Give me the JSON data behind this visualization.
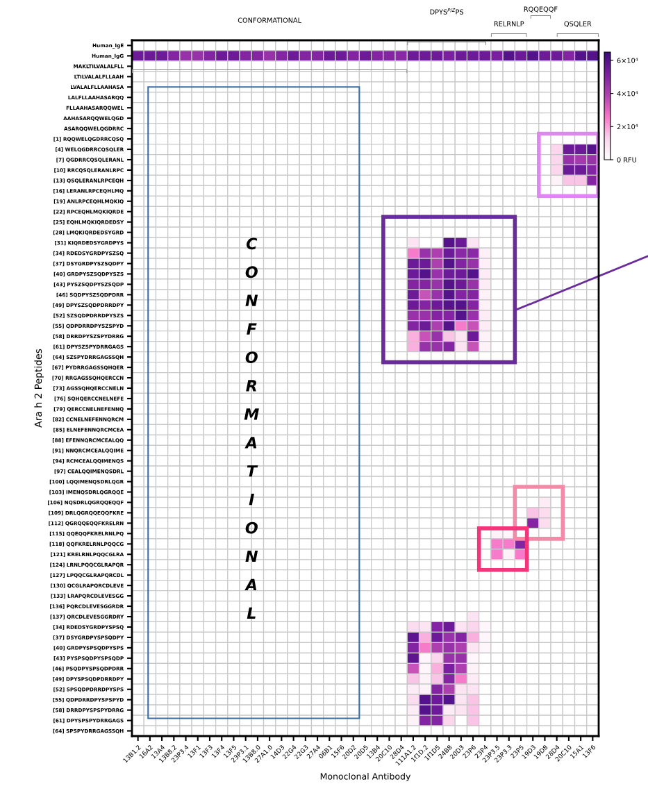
{
  "chart_data": {
    "type": "heatmap",
    "xlabel": "Monoclonal Antibody",
    "ylabel": "Ara h 2 Peptides",
    "categories": [
      "13B1.2",
      "16A2",
      "13A4",
      "13B8.2",
      "23P3.4",
      "13F1",
      "13F3",
      "13F4",
      "13F5",
      "23P3.1",
      "13B8.0",
      "27A1.0",
      "14D3",
      "22G4",
      "22G3",
      "27A4",
      "06B1",
      "15F6",
      "20D2",
      "20D5",
      "13B4",
      "20C10",
      "28D4",
      "111A1.2",
      "1f1D.2",
      "1f1D5",
      "24B8",
      "20D3",
      "23P6",
      "23P4",
      "23P3.5",
      "23P3.3",
      "23P5",
      "19D3",
      "19D8",
      "28D4",
      "20C10",
      "15A1",
      "13F6"
    ],
    "y_categories": [
      "Human_IgE",
      "Human_IgG",
      "MAKLTILVALALFLL",
      "LTILVALALFLLAAH",
      "LVALALFLLAAHASA",
      "LALFLLAAHASARQQ",
      "FLLAAHASARQQWEL",
      "AAHASARQQWELQGD",
      "ASARQQWELQGDRRC",
      "[1] RQQWELQGDRRCQSQ",
      "[4] WELQGDRRCQSQLER",
      "[7] QGDRRCQSQLERANL",
      "[10] RRCQSQLERANLRPC",
      "[13] QSQLERANLRPCEQH",
      "[16] LERANLRPCEQHLMQ",
      "[19] ANLRPCEQHLMQKIQ",
      "[22] RPCEQHLMQKIQRDE",
      "[25] EQHLMQKIQRDEDSY",
      "[28] LMQKIQRDEDSYGRD",
      "[31] KIQRDEDSYGRDPYS",
      "[34] RDEDSYGRDPYSZSQ",
      "[37] DSYGRDPYSZSQDPY",
      "[40] GRDPYSZSQDPYSZS",
      "[43] PYSZSQDPYSZSQDP",
      "[46] SQDPYSZSQDPDRR",
      "[49] DPYSZSQDPDRRDPY",
      "[52] SZSQDPDRRDPYSZS",
      "[55] QDPDRRDPYSZSPYD",
      "[58] DRRDPYSZSPYDRRG",
      "[61] DPYSZSPYDRRGAGS",
      "[64] SZSPYDRRGAGSSQH",
      "[67] PYDRRGAGSSQHQER",
      "[70] RRGAGSSQHQERCCN",
      "[73] AGSSQHQERCCNELN",
      "[76] SQHQERCCNELNEFE",
      "[79] QERCCNELNEFENNQ",
      "[82] CCNELNEFENNQRCM",
      "[85] ELNEFENNQRCMCEA",
      "[88] EFENNQRCMCEALQQ",
      "[91] NNQRCMCEALQQIME",
      "[94] RCMCEALQQIMENQS",
      "[97] CEALQQIMENQSDRL",
      "[100] LQQIMENQSDRLQGR",
      "[103] IMENQSDRLQGRQQE",
      "[106] NQSDRLQGRQQEQQF",
      "[109] DRLQGRQQEQQFKRE",
      "[112] QGRQQEQQFKRELRN",
      "[115] QQEQQFKRELRNLPQ",
      "[118] QQFKRELRNLPQQCG",
      "[121] KRELRNLPQQCGLRA",
      "[124] LRNLPQQCGLRAPQR",
      "[127] LPQQCGLRAPQRCDL",
      "[130] QCGLRAPQRCDLEVE",
      "[133] LRAPQRCDLEVESGG",
      "[136] PQRCDLEVESGGRDR",
      "[137] QRCDLEVESGGRDRY",
      "[34] RDEDSYGRDPYSPSQ",
      "[37] DSYGRDPYSPSQDPY",
      "[40] GRDPYSPSQDPYSPS",
      "[43] PYSPSQDPYSPSQDP",
      "[46] PSQDPYSPSQDPDRR",
      "[49] DPYSPSQDPDRRDPY",
      "[52] SPSQDPDRRDPYSPS",
      "[55] QDPDRRDPYSPSPYD",
      "[58] DRRDPYSPSPYDRRG",
      "[61] DPYSPSPYDRRGAGS",
      "[64] SPSPYDRRGAGSSQH"
    ],
    "cells": [
      [
        0,
        0,
        0,
        0,
        0,
        0,
        0,
        0,
        0,
        0,
        0,
        0,
        0,
        0,
        0,
        0,
        0,
        0,
        0,
        0,
        0,
        0,
        0,
        0,
        0,
        0,
        0,
        0,
        0,
        0,
        0,
        0,
        0,
        0,
        0,
        0,
        0,
        0,
        0
      ],
      [
        55000,
        55000,
        55000,
        50000,
        45000,
        45000,
        50000,
        55000,
        55000,
        50000,
        50000,
        45000,
        50000,
        55000,
        50000,
        50000,
        55000,
        55000,
        50000,
        55000,
        50000,
        50000,
        48000,
        55000,
        55000,
        55000,
        52000,
        55000,
        55000,
        55000,
        52000,
        60000,
        55000,
        60000,
        55000,
        55000,
        50000,
        60000,
        60000
      ],
      [
        0,
        0,
        0,
        0,
        0,
        0,
        0,
        0,
        0,
        0,
        0,
        0,
        0,
        0,
        0,
        0,
        0,
        0,
        0,
        0,
        0,
        0,
        0,
        0,
        0,
        0,
        0,
        0,
        0,
        0,
        0,
        0,
        0,
        0,
        0,
        0,
        0,
        0,
        0
      ],
      [
        0,
        0,
        0,
        0,
        0,
        0,
        0,
        0,
        0,
        0,
        0,
        0,
        0,
        0,
        0,
        0,
        0,
        0,
        0,
        0,
        0,
        0,
        0,
        0,
        0,
        0,
        0,
        0,
        0,
        0,
        0,
        0,
        0,
        0,
        0,
        0,
        0,
        0,
        0
      ],
      [
        0,
        0,
        0,
        0,
        0,
        0,
        0,
        0,
        0,
        0,
        0,
        0,
        0,
        0,
        0,
        0,
        0,
        0,
        0,
        0,
        0,
        0,
        0,
        0,
        0,
        0,
        0,
        0,
        0,
        0,
        0,
        0,
        0,
        0,
        0,
        0,
        0,
        0,
        0
      ],
      [
        0,
        0,
        0,
        0,
        0,
        0,
        0,
        0,
        0,
        0,
        0,
        0,
        0,
        0,
        0,
        0,
        0,
        0,
        0,
        0,
        0,
        0,
        0,
        0,
        0,
        0,
        0,
        0,
        0,
        0,
        0,
        0,
        0,
        0,
        0,
        0,
        0,
        0,
        0
      ],
      [
        0,
        0,
        0,
        0,
        0,
        0,
        0,
        0,
        0,
        0,
        0,
        0,
        0,
        0,
        0,
        0,
        0,
        0,
        0,
        0,
        0,
        0,
        0,
        0,
        0,
        0,
        0,
        0,
        0,
        0,
        0,
        0,
        0,
        0,
        0,
        0,
        0,
        0,
        0
      ],
      [
        0,
        0,
        0,
        0,
        0,
        0,
        0,
        0,
        0,
        0,
        0,
        0,
        0,
        0,
        0,
        0,
        0,
        0,
        0,
        0,
        0,
        0,
        0,
        0,
        0,
        0,
        0,
        0,
        0,
        0,
        0,
        0,
        0,
        0,
        0,
        0,
        0,
        0,
        0
      ],
      [
        0,
        0,
        0,
        0,
        0,
        0,
        0,
        0,
        0,
        0,
        0,
        0,
        0,
        0,
        0,
        0,
        0,
        0,
        0,
        0,
        0,
        0,
        0,
        0,
        0,
        0,
        0,
        0,
        0,
        0,
        0,
        0,
        0,
        0,
        0,
        0,
        0,
        0,
        0
      ],
      [
        0,
        0,
        0,
        0,
        0,
        0,
        0,
        0,
        0,
        0,
        0,
        0,
        0,
        0,
        0,
        0,
        0,
        0,
        0,
        0,
        0,
        0,
        0,
        0,
        0,
        0,
        0,
        0,
        0,
        0,
        0,
        0,
        0,
        0,
        0,
        0,
        0,
        0,
        0
      ],
      [
        0,
        0,
        0,
        0,
        0,
        0,
        0,
        0,
        0,
        0,
        0,
        0,
        0,
        0,
        0,
        0,
        0,
        0,
        0,
        0,
        0,
        0,
        0,
        0,
        0,
        0,
        0,
        0,
        0,
        0,
        0,
        0,
        0,
        0,
        0,
        12000,
        55000,
        55000,
        60000
      ],
      [
        0,
        0,
        0,
        0,
        0,
        0,
        0,
        0,
        0,
        0,
        0,
        0,
        0,
        0,
        0,
        0,
        0,
        0,
        0,
        0,
        0,
        0,
        0,
        0,
        0,
        0,
        0,
        0,
        0,
        0,
        0,
        0,
        0,
        0,
        0,
        12000,
        45000,
        42000,
        45000
      ],
      [
        0,
        0,
        0,
        0,
        0,
        0,
        0,
        0,
        0,
        0,
        0,
        0,
        0,
        0,
        0,
        0,
        0,
        0,
        0,
        0,
        0,
        0,
        0,
        0,
        0,
        0,
        0,
        0,
        0,
        0,
        0,
        0,
        0,
        0,
        0,
        12000,
        55000,
        55000,
        50000
      ],
      [
        0,
        0,
        0,
        0,
        0,
        0,
        0,
        0,
        0,
        0,
        0,
        0,
        0,
        0,
        0,
        0,
        0,
        0,
        0,
        0,
        0,
        0,
        0,
        0,
        0,
        0,
        0,
        0,
        0,
        0,
        0,
        0,
        0,
        0,
        0,
        4000,
        15000,
        15000,
        50000
      ],
      [
        0,
        0,
        0,
        0,
        0,
        0,
        0,
        0,
        0,
        0,
        0,
        0,
        0,
        0,
        0,
        0,
        0,
        0,
        0,
        0,
        0,
        0,
        0,
        0,
        0,
        0,
        0,
        0,
        0,
        0,
        0,
        0,
        0,
        0,
        0,
        0,
        0,
        0,
        0
      ],
      [
        0,
        0,
        0,
        0,
        0,
        0,
        0,
        0,
        0,
        0,
        0,
        0,
        0,
        0,
        0,
        0,
        0,
        0,
        0,
        0,
        0,
        0,
        0,
        0,
        0,
        0,
        0,
        0,
        0,
        0,
        0,
        0,
        0,
        0,
        0,
        0,
        0,
        0,
        0
      ],
      [
        0,
        0,
        0,
        0,
        0,
        0,
        0,
        0,
        0,
        0,
        0,
        0,
        0,
        0,
        0,
        0,
        0,
        0,
        0,
        0,
        0,
        0,
        0,
        0,
        0,
        0,
        0,
        0,
        0,
        0,
        0,
        0,
        0,
        0,
        0,
        0,
        0,
        0,
        0
      ],
      [
        0,
        0,
        0,
        0,
        0,
        0,
        0,
        0,
        0,
        0,
        0,
        0,
        0,
        0,
        0,
        0,
        0,
        0,
        0,
        0,
        0,
        0,
        0,
        0,
        0,
        0,
        0,
        0,
        0,
        0,
        0,
        0,
        0,
        0,
        0,
        0,
        0,
        0,
        0
      ],
      [
        0,
        0,
        0,
        0,
        0,
        0,
        0,
        0,
        0,
        0,
        0,
        0,
        0,
        0,
        0,
        0,
        0,
        0,
        0,
        0,
        0,
        0,
        0,
        0,
        0,
        0,
        0,
        0,
        0,
        0,
        0,
        0,
        0,
        0,
        0,
        0,
        0,
        0,
        0
      ],
      [
        0,
        0,
        0,
        0,
        0,
        0,
        0,
        0,
        0,
        0,
        0,
        0,
        0,
        0,
        0,
        0,
        0,
        0,
        0,
        0,
        0,
        0,
        0,
        8000,
        0,
        0,
        60000,
        55000,
        8000,
        0,
        0,
        0,
        0,
        0,
        0,
        0,
        0,
        0,
        0
      ],
      [
        0,
        0,
        0,
        0,
        0,
        0,
        0,
        0,
        0,
        0,
        0,
        0,
        0,
        0,
        0,
        0,
        0,
        0,
        0,
        0,
        0,
        0,
        0,
        25000,
        45000,
        40000,
        55000,
        48000,
        48000,
        5000,
        0,
        0,
        0,
        0,
        0,
        0,
        0,
        0,
        0
      ],
      [
        0,
        0,
        0,
        0,
        0,
        0,
        0,
        0,
        0,
        0,
        0,
        0,
        0,
        0,
        0,
        0,
        0,
        0,
        0,
        0,
        0,
        0,
        0,
        55000,
        55000,
        40000,
        60000,
        50000,
        45000,
        5000,
        0,
        0,
        0,
        0,
        0,
        0,
        0,
        0,
        0
      ],
      [
        0,
        0,
        0,
        0,
        0,
        0,
        0,
        0,
        0,
        0,
        0,
        0,
        0,
        0,
        0,
        0,
        0,
        0,
        0,
        0,
        0,
        0,
        0,
        55000,
        60000,
        45000,
        55000,
        55000,
        60000,
        6000,
        0,
        0,
        0,
        0,
        0,
        0,
        0,
        0,
        0
      ],
      [
        0,
        0,
        0,
        0,
        0,
        0,
        0,
        0,
        0,
        0,
        0,
        0,
        0,
        0,
        0,
        0,
        0,
        0,
        0,
        0,
        0,
        0,
        0,
        50000,
        50000,
        45000,
        60000,
        55000,
        45000,
        6000,
        0,
        0,
        0,
        0,
        0,
        0,
        0,
        0,
        0
      ],
      [
        0,
        0,
        0,
        0,
        0,
        0,
        0,
        0,
        0,
        0,
        0,
        0,
        0,
        0,
        0,
        0,
        0,
        0,
        0,
        0,
        0,
        0,
        0,
        55000,
        35000,
        45000,
        60000,
        50000,
        50000,
        4000,
        0,
        0,
        0,
        0,
        0,
        0,
        0,
        0,
        0
      ],
      [
        0,
        0,
        0,
        0,
        0,
        0,
        0,
        0,
        0,
        0,
        0,
        0,
        0,
        0,
        0,
        0,
        0,
        0,
        0,
        0,
        0,
        0,
        0,
        55000,
        50000,
        55000,
        60000,
        60000,
        50000,
        4000,
        0,
        0,
        0,
        0,
        0,
        0,
        0,
        0,
        0
      ],
      [
        0,
        0,
        0,
        0,
        0,
        0,
        0,
        0,
        0,
        0,
        0,
        0,
        0,
        0,
        0,
        0,
        0,
        0,
        0,
        0,
        0,
        0,
        0,
        45000,
        45000,
        50000,
        50000,
        60000,
        45000,
        6000,
        0,
        0,
        0,
        0,
        0,
        0,
        0,
        0,
        0
      ],
      [
        0,
        0,
        0,
        0,
        0,
        0,
        0,
        0,
        0,
        0,
        0,
        0,
        0,
        0,
        0,
        0,
        0,
        0,
        0,
        0,
        0,
        0,
        0,
        50000,
        55000,
        40000,
        60000,
        25000,
        35000,
        6000,
        0,
        0,
        0,
        0,
        0,
        0,
        0,
        0,
        0
      ],
      [
        0,
        0,
        0,
        0,
        0,
        0,
        0,
        0,
        0,
        0,
        0,
        0,
        0,
        0,
        0,
        0,
        0,
        0,
        0,
        0,
        0,
        0,
        0,
        18000,
        35000,
        45000,
        15000,
        8000,
        55000,
        4000,
        0,
        0,
        0,
        0,
        0,
        0,
        0,
        0,
        0
      ],
      [
        0,
        0,
        0,
        0,
        0,
        0,
        0,
        0,
        0,
        0,
        0,
        0,
        0,
        0,
        0,
        0,
        0,
        0,
        0,
        0,
        0,
        0,
        0,
        18000,
        45000,
        45000,
        50000,
        8000,
        35000,
        4000,
        0,
        0,
        0,
        0,
        0,
        0,
        0,
        0,
        0
      ],
      [
        0,
        0,
        0,
        0,
        0,
        0,
        0,
        0,
        0,
        0,
        0,
        0,
        0,
        0,
        0,
        0,
        0,
        0,
        0,
        0,
        0,
        0,
        0,
        0,
        0,
        0,
        0,
        0,
        0,
        0,
        0,
        0,
        0,
        0,
        0,
        0,
        0,
        0,
        0
      ],
      [
        0,
        0,
        0,
        0,
        0,
        0,
        0,
        0,
        0,
        0,
        0,
        0,
        0,
        0,
        0,
        0,
        0,
        0,
        0,
        0,
        0,
        0,
        0,
        0,
        0,
        0,
        0,
        0,
        0,
        0,
        0,
        0,
        0,
        0,
        0,
        0,
        0,
        0,
        0
      ],
      [
        0,
        0,
        0,
        0,
        0,
        0,
        0,
        0,
        0,
        0,
        0,
        0,
        0,
        0,
        0,
        0,
        0,
        0,
        0,
        0,
        0,
        0,
        0,
        0,
        0,
        0,
        0,
        0,
        0,
        0,
        0,
        0,
        0,
        0,
        0,
        0,
        0,
        0,
        0
      ],
      [
        0,
        0,
        0,
        0,
        0,
        0,
        0,
        0,
        0,
        0,
        0,
        0,
        0,
        0,
        0,
        0,
        0,
        0,
        0,
        0,
        0,
        0,
        0,
        0,
        0,
        0,
        0,
        0,
        0,
        0,
        0,
        0,
        0,
        0,
        0,
        0,
        0,
        0,
        0
      ],
      [
        0,
        0,
        0,
        0,
        0,
        0,
        0,
        0,
        0,
        0,
        0,
        0,
        0,
        0,
        0,
        0,
        0,
        0,
        0,
        0,
        0,
        0,
        0,
        0,
        0,
        0,
        0,
        0,
        0,
        0,
        0,
        0,
        0,
        0,
        0,
        0,
        0,
        0,
        0
      ],
      [
        0,
        0,
        0,
        0,
        0,
        0,
        0,
        0,
        0,
        0,
        0,
        0,
        0,
        0,
        0,
        0,
        0,
        0,
        0,
        0,
        0,
        0,
        0,
        0,
        0,
        0,
        0,
        0,
        0,
        0,
        0,
        0,
        0,
        0,
        0,
        0,
        0,
        0,
        0
      ],
      [
        0,
        0,
        0,
        0,
        0,
        0,
        0,
        0,
        0,
        0,
        0,
        0,
        0,
        0,
        0,
        0,
        0,
        0,
        0,
        0,
        0,
        0,
        0,
        0,
        0,
        0,
        0,
        0,
        0,
        0,
        0,
        0,
        0,
        0,
        0,
        0,
        0,
        0,
        0
      ],
      [
        0,
        0,
        0,
        0,
        0,
        0,
        0,
        0,
        0,
        0,
        0,
        0,
        0,
        0,
        0,
        0,
        0,
        0,
        0,
        0,
        0,
        0,
        0,
        0,
        0,
        0,
        0,
        0,
        0,
        0,
        0,
        0,
        0,
        0,
        0,
        0,
        0,
        0,
        0
      ],
      [
        0,
        0,
        0,
        0,
        0,
        0,
        0,
        0,
        0,
        0,
        0,
        0,
        0,
        0,
        0,
        0,
        0,
        0,
        0,
        0,
        0,
        0,
        0,
        0,
        0,
        0,
        0,
        0,
        0,
        0,
        0,
        0,
        0,
        0,
        0,
        0,
        0,
        0,
        0
      ],
      [
        0,
        0,
        0,
        0,
        0,
        0,
        0,
        0,
        0,
        0,
        0,
        0,
        0,
        0,
        0,
        0,
        0,
        0,
        0,
        0,
        0,
        0,
        0,
        0,
        0,
        0,
        0,
        0,
        0,
        0,
        0,
        0,
        0,
        0,
        0,
        0,
        0,
        0,
        0
      ],
      [
        0,
        0,
        0,
        0,
        0,
        0,
        0,
        0,
        0,
        0,
        0,
        0,
        0,
        0,
        0,
        0,
        0,
        0,
        0,
        0,
        0,
        0,
        0,
        0,
        0,
        0,
        0,
        0,
        0,
        0,
        0,
        0,
        0,
        0,
        0,
        0,
        0,
        0,
        0
      ],
      [
        0,
        0,
        0,
        0,
        0,
        0,
        0,
        0,
        0,
        0,
        0,
        0,
        0,
        0,
        0,
        0,
        0,
        0,
        0,
        0,
        0,
        0,
        0,
        0,
        0,
        0,
        0,
        0,
        0,
        0,
        0,
        0,
        0,
        0,
        0,
        0,
        0,
        0,
        0
      ],
      [
        0,
        0,
        0,
        0,
        0,
        0,
        0,
        0,
        0,
        0,
        0,
        0,
        0,
        0,
        0,
        0,
        0,
        0,
        0,
        0,
        0,
        0,
        0,
        0,
        0,
        0,
        0,
        0,
        0,
        0,
        0,
        0,
        0,
        0,
        0,
        0,
        0,
        0,
        0
      ],
      [
        0,
        0,
        0,
        0,
        0,
        0,
        0,
        0,
        0,
        0,
        0,
        0,
        0,
        0,
        0,
        0,
        0,
        0,
        0,
        0,
        0,
        0,
        0,
        0,
        0,
        0,
        0,
        0,
        0,
        0,
        0,
        0,
        0,
        0,
        0,
        0,
        0,
        0,
        0
      ],
      [
        0,
        0,
        0,
        0,
        0,
        0,
        0,
        0,
        0,
        0,
        0,
        0,
        0,
        0,
        0,
        0,
        0,
        0,
        0,
        0,
        0,
        0,
        0,
        0,
        0,
        0,
        0,
        0,
        0,
        0,
        0,
        0,
        0,
        0,
        6000,
        0,
        0,
        0,
        0
      ],
      [
        0,
        0,
        0,
        0,
        0,
        0,
        0,
        0,
        0,
        0,
        0,
        0,
        0,
        0,
        0,
        0,
        0,
        0,
        0,
        0,
        0,
        0,
        0,
        0,
        0,
        0,
        0,
        0,
        0,
        0,
        0,
        0,
        0,
        15000,
        10000,
        0,
        0,
        0,
        0
      ],
      [
        0,
        0,
        0,
        0,
        0,
        0,
        0,
        0,
        0,
        0,
        0,
        0,
        0,
        0,
        0,
        0,
        0,
        0,
        0,
        0,
        0,
        0,
        0,
        0,
        0,
        0,
        0,
        0,
        0,
        0,
        0,
        0,
        0,
        50000,
        10000,
        0,
        0,
        0,
        0
      ],
      [
        0,
        0,
        0,
        0,
        0,
        0,
        0,
        0,
        0,
        0,
        0,
        0,
        0,
        0,
        0,
        0,
        0,
        0,
        0,
        0,
        0,
        0,
        0,
        0,
        0,
        0,
        0,
        0,
        0,
        0,
        4000,
        3000,
        0,
        0,
        0,
        0,
        0,
        0,
        0
      ],
      [
        0,
        0,
        0,
        0,
        0,
        0,
        0,
        0,
        0,
        0,
        0,
        0,
        0,
        0,
        0,
        0,
        0,
        0,
        0,
        0,
        0,
        0,
        0,
        0,
        0,
        0,
        0,
        0,
        0,
        0,
        25000,
        25000,
        50000,
        0,
        0,
        0,
        0,
        0,
        0
      ],
      [
        0,
        0,
        0,
        0,
        0,
        0,
        0,
        0,
        0,
        0,
        0,
        0,
        0,
        0,
        0,
        0,
        0,
        0,
        0,
        0,
        0,
        0,
        0,
        0,
        0,
        0,
        0,
        0,
        0,
        0,
        25000,
        4000,
        25000,
        0,
        0,
        0,
        0,
        0,
        0
      ],
      [
        0,
        0,
        0,
        0,
        0,
        0,
        0,
        0,
        0,
        0,
        0,
        0,
        0,
        0,
        0,
        0,
        0,
        0,
        0,
        0,
        0,
        0,
        0,
        0,
        0,
        0,
        0,
        0,
        0,
        0,
        0,
        0,
        0,
        0,
        0,
        0,
        0,
        0,
        0
      ],
      [
        0,
        0,
        0,
        0,
        0,
        0,
        0,
        0,
        0,
        0,
        0,
        0,
        0,
        0,
        0,
        0,
        0,
        0,
        0,
        0,
        0,
        0,
        0,
        0,
        0,
        0,
        0,
        0,
        0,
        0,
        0,
        0,
        0,
        0,
        0,
        0,
        0,
        0,
        0
      ],
      [
        0,
        0,
        0,
        0,
        0,
        0,
        0,
        0,
        0,
        0,
        0,
        0,
        0,
        0,
        0,
        0,
        0,
        0,
        0,
        0,
        0,
        0,
        0,
        0,
        0,
        0,
        0,
        0,
        0,
        0,
        0,
        0,
        0,
        0,
        0,
        0,
        0,
        0,
        0
      ],
      [
        0,
        0,
        0,
        0,
        0,
        0,
        0,
        0,
        0,
        0,
        0,
        0,
        0,
        0,
        0,
        0,
        0,
        0,
        0,
        0,
        0,
        0,
        0,
        0,
        0,
        0,
        0,
        0,
        0,
        0,
        0,
        0,
        0,
        0,
        0,
        0,
        0,
        0,
        0
      ],
      [
        0,
        0,
        0,
        0,
        0,
        0,
        0,
        0,
        0,
        0,
        0,
        0,
        0,
        0,
        0,
        0,
        0,
        0,
        0,
        0,
        0,
        0,
        0,
        0,
        0,
        0,
        0,
        0,
        0,
        0,
        0,
        0,
        0,
        0,
        0,
        0,
        0,
        0,
        0
      ],
      [
        0,
        0,
        0,
        0,
        0,
        0,
        0,
        0,
        0,
        0,
        0,
        0,
        0,
        0,
        0,
        0,
        0,
        0,
        0,
        0,
        0,
        0,
        0,
        0,
        0,
        0,
        0,
        0,
        8000,
        0,
        0,
        0,
        0,
        0,
        0,
        0,
        0,
        0,
        0
      ],
      [
        0,
        0,
        0,
        0,
        0,
        0,
        0,
        0,
        0,
        0,
        0,
        0,
        0,
        0,
        0,
        0,
        0,
        0,
        0,
        0,
        0,
        0,
        0,
        10000,
        8000,
        50000,
        55000,
        8000,
        12000,
        3000,
        0,
        0,
        0,
        0,
        0,
        0,
        0,
        0,
        0
      ],
      [
        0,
        0,
        0,
        0,
        0,
        0,
        0,
        0,
        0,
        0,
        0,
        0,
        0,
        0,
        0,
        0,
        0,
        0,
        0,
        0,
        0,
        0,
        0,
        58000,
        18000,
        55000,
        45000,
        50000,
        18000,
        3000,
        0,
        0,
        0,
        0,
        0,
        0,
        0,
        0,
        0
      ],
      [
        0,
        0,
        0,
        0,
        0,
        0,
        0,
        0,
        0,
        0,
        0,
        0,
        0,
        0,
        0,
        0,
        0,
        0,
        0,
        0,
        0,
        0,
        0,
        50000,
        25000,
        40000,
        45000,
        40000,
        8000,
        3000,
        0,
        0,
        0,
        0,
        0,
        0,
        0,
        0,
        0
      ],
      [
        0,
        0,
        0,
        0,
        0,
        0,
        0,
        0,
        0,
        0,
        0,
        0,
        0,
        0,
        0,
        0,
        0,
        0,
        0,
        0,
        0,
        0,
        0,
        58000,
        3000,
        12000,
        45000,
        45000,
        3000,
        0,
        0,
        0,
        0,
        0,
        0,
        0,
        0,
        0,
        0
      ],
      [
        0,
        0,
        0,
        0,
        0,
        0,
        0,
        0,
        0,
        0,
        0,
        0,
        0,
        0,
        0,
        0,
        0,
        0,
        0,
        0,
        0,
        0,
        0,
        35000,
        3000,
        18000,
        52000,
        40000,
        4000,
        0,
        0,
        0,
        0,
        0,
        0,
        0,
        0,
        0,
        0
      ],
      [
        0,
        0,
        0,
        0,
        0,
        0,
        0,
        0,
        0,
        0,
        0,
        0,
        0,
        0,
        0,
        0,
        0,
        0,
        0,
        0,
        0,
        0,
        0,
        15000,
        4000,
        15000,
        50000,
        25000,
        6000,
        0,
        0,
        0,
        0,
        0,
        0,
        0,
        0,
        0,
        0
      ],
      [
        0,
        0,
        0,
        0,
        0,
        0,
        0,
        0,
        0,
        0,
        0,
        0,
        0,
        0,
        0,
        0,
        0,
        0,
        0,
        0,
        0,
        0,
        0,
        6000,
        4000,
        50000,
        40000,
        8000,
        8000,
        0,
        0,
        0,
        0,
        0,
        0,
        0,
        0,
        0,
        0
      ],
      [
        0,
        0,
        0,
        0,
        0,
        0,
        0,
        0,
        0,
        0,
        0,
        0,
        0,
        0,
        0,
        0,
        0,
        0,
        0,
        0,
        0,
        0,
        0,
        10000,
        60000,
        55000,
        60000,
        8000,
        15000,
        0,
        0,
        0,
        0,
        0,
        0,
        0,
        0,
        0,
        0
      ],
      [
        0,
        0,
        0,
        0,
        0,
        0,
        0,
        0,
        0,
        0,
        0,
        0,
        0,
        0,
        0,
        0,
        0,
        0,
        0,
        0,
        0,
        0,
        0,
        6000,
        60000,
        55000,
        6000,
        8000,
        15000,
        0,
        0,
        0,
        0,
        0,
        0,
        0,
        0,
        0,
        0
      ],
      [
        0,
        0,
        0,
        0,
        0,
        0,
        0,
        0,
        0,
        0,
        0,
        0,
        0,
        0,
        0,
        0,
        0,
        0,
        0,
        0,
        0,
        0,
        0,
        4000,
        50000,
        50000,
        12000,
        0,
        15000,
        0,
        0,
        0,
        0,
        0,
        0,
        0,
        0,
        0,
        0
      ],
      [
        0,
        0,
        0,
        0,
        0,
        0,
        0,
        0,
        0,
        0,
        0,
        0,
        0,
        0,
        0,
        0,
        0,
        0,
        0,
        0,
        0,
        0,
        0,
        0,
        0,
        0,
        0,
        0,
        0,
        0,
        0,
        0,
        0,
        0,
        0,
        0,
        0,
        0,
        0
      ]
    ],
    "clim": [
      0,
      65000
    ],
    "cticks": [
      {
        "value": 0,
        "label": "0 RFU"
      },
      {
        "value": 20000,
        "label": "2×10⁴"
      },
      {
        "value": 40000,
        "label": "4×10⁴"
      },
      {
        "value": 60000,
        "label": "6×10⁴"
      }
    ],
    "annotations": [
      "CONFORMATIONAL",
      "DPYS$^{P/Z}$PS",
      "RELRNLP",
      "RQQEQQF",
      "QSQLER",
      "CONFORMATIONAL"
    ]
  }
}
